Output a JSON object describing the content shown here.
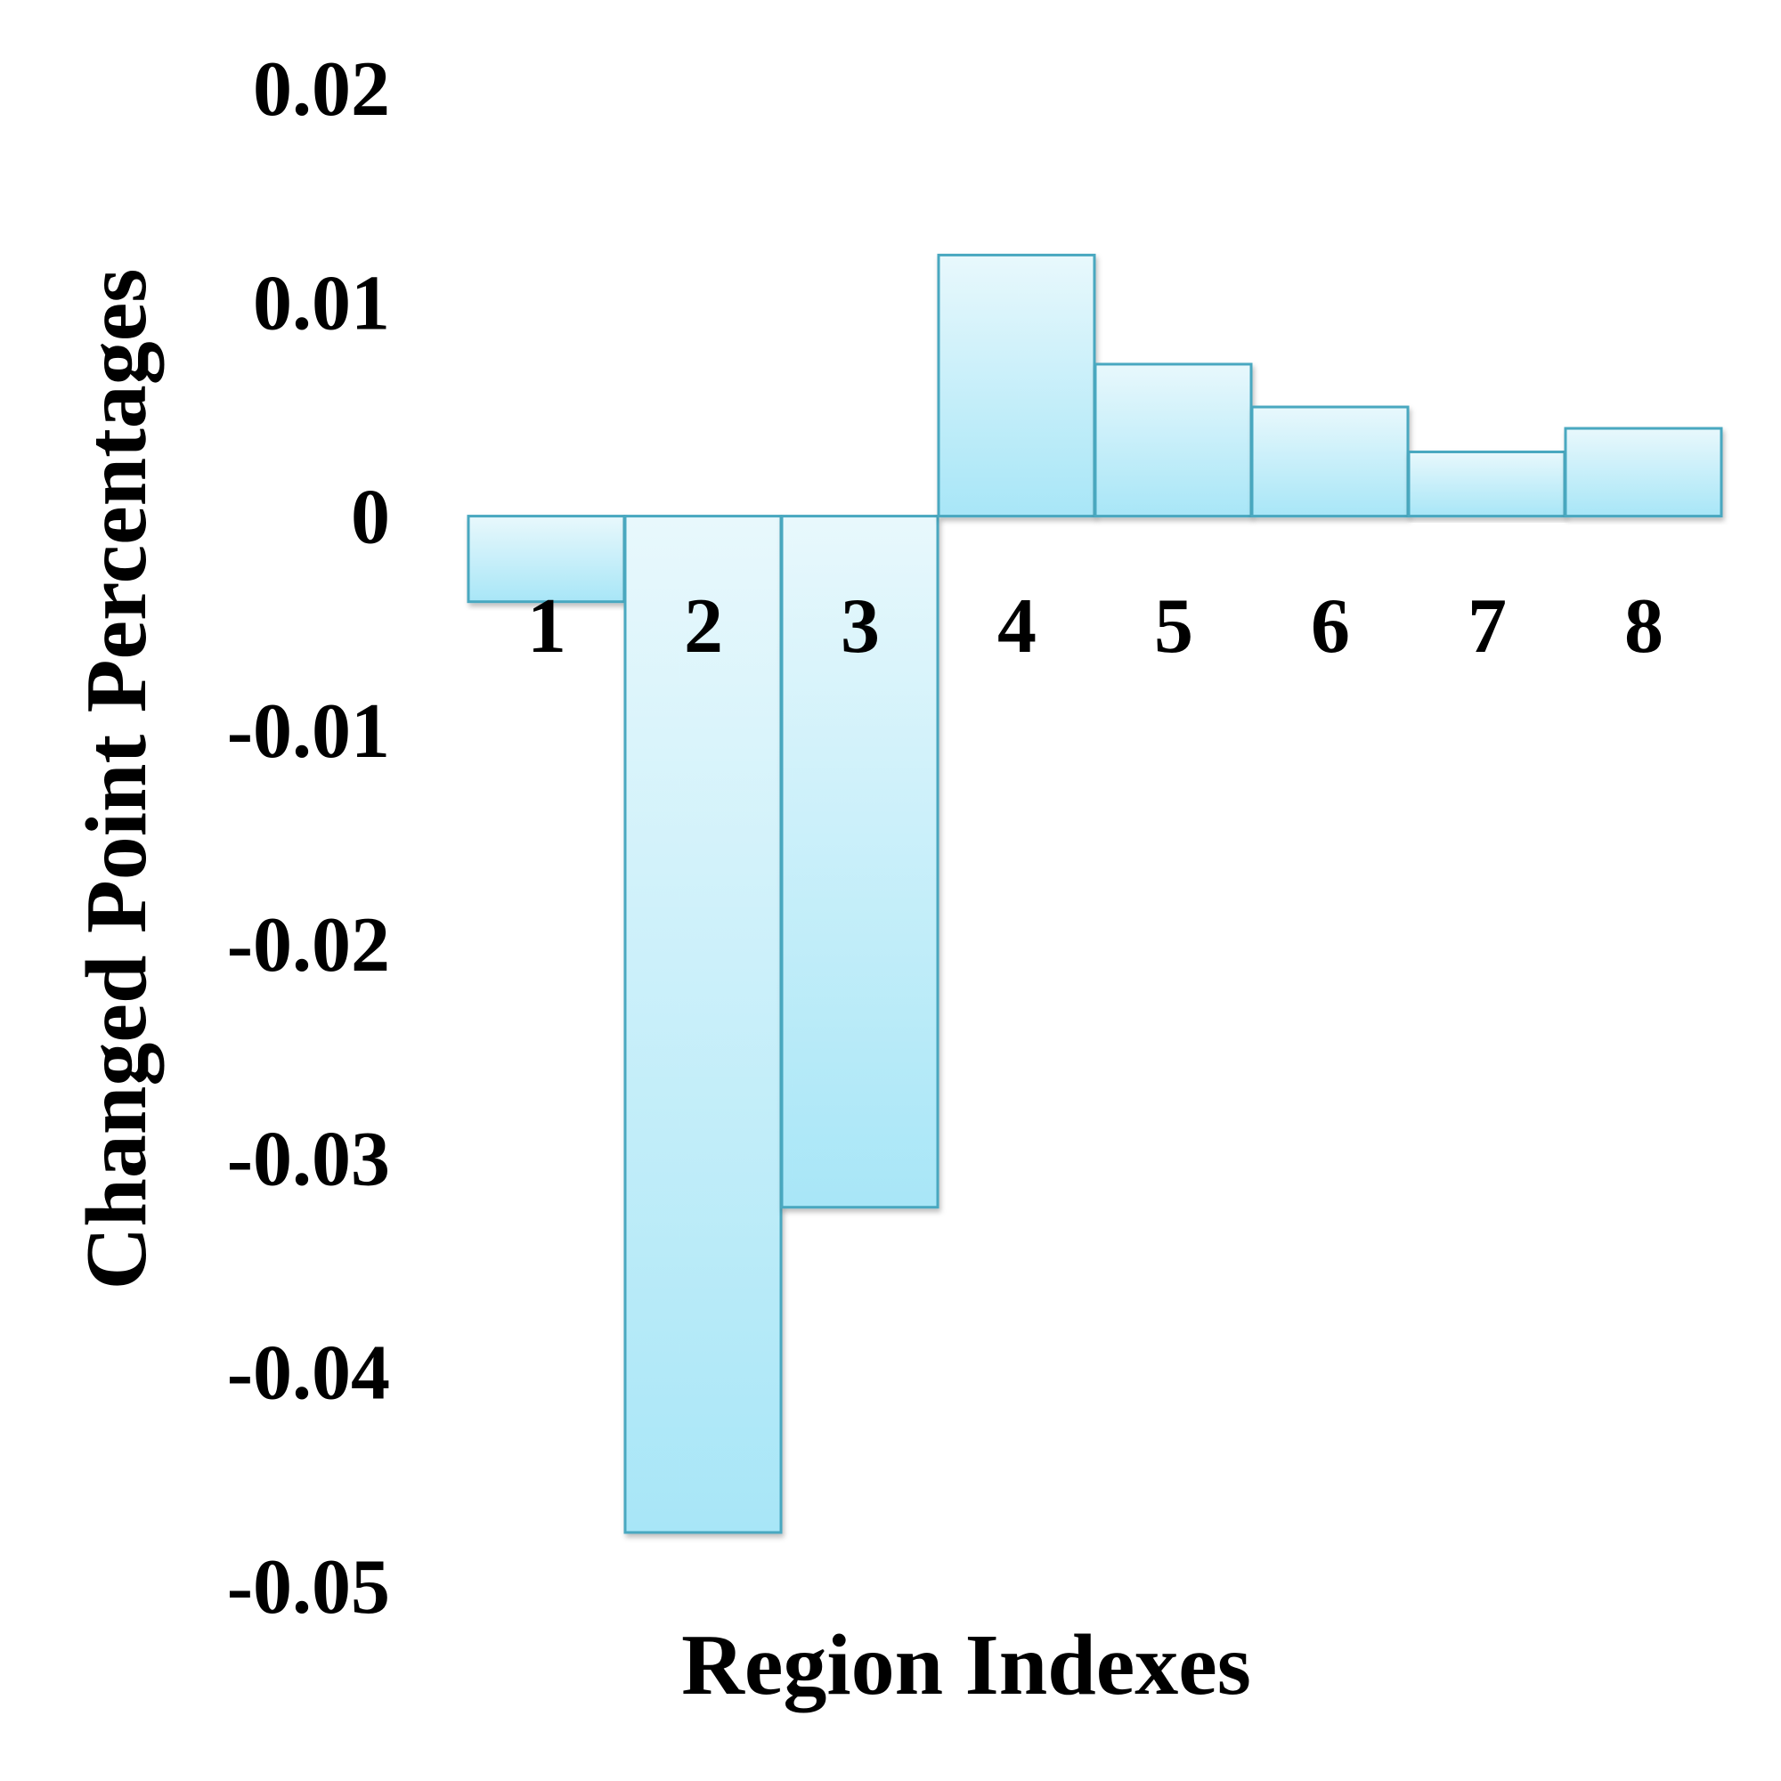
{
  "chart_data": {
    "type": "bar",
    "title": "",
    "xlabel": "Region Indexes",
    "ylabel": "Changed Point Percentages",
    "categories": [
      "1",
      "2",
      "3",
      "4",
      "5",
      "6",
      "7",
      "8"
    ],
    "values": [
      -0.004,
      -0.0475,
      -0.0323,
      0.0122,
      0.0071,
      0.0051,
      0.003,
      0.0041
    ],
    "ylim": [
      -0.05,
      0.02
    ],
    "yticks": [
      "0.02",
      "0.01",
      "0",
      "-0.01",
      "-0.02",
      "-0.03",
      "-0.04",
      "-0.05"
    ],
    "ytick_values": [
      0.02,
      0.01,
      0,
      -0.01,
      -0.02,
      -0.03,
      -0.04,
      -0.05
    ],
    "grid": false,
    "legend": "none",
    "colors": {
      "bar_fill_top": "#e8f8fc",
      "bar_fill_bottom": "#a8e6f7",
      "bar_stroke": "#4aa8c0"
    }
  }
}
